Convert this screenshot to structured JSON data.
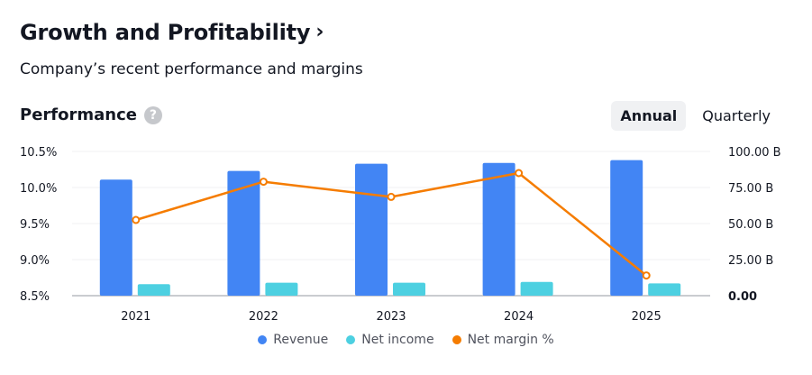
{
  "header": {
    "title": "Growth and Profitability",
    "title_chevron": "›",
    "subtitle": "Company’s recent performance and margins"
  },
  "performance": {
    "title": "Performance",
    "help_icon": "?",
    "toggle": {
      "annual": "Annual",
      "quarterly": "Quarterly",
      "active": "annual"
    }
  },
  "colors": {
    "revenue": "#4285f4",
    "net_income": "#4dd0e1",
    "net_margin": "#f57c00"
  },
  "chart_data": {
    "type": "bar",
    "categories": [
      "2021",
      "2022",
      "2023",
      "2024",
      "2025"
    ],
    "series": [
      {
        "name": "Revenue",
        "type": "bar",
        "axis": "right",
        "values": [
          80.5,
          86.5,
          91.5,
          92.0,
          94.0
        ]
      },
      {
        "name": "Net income",
        "type": "bar",
        "axis": "right",
        "values": [
          8.0,
          9.0,
          9.0,
          9.5,
          8.5
        ]
      },
      {
        "name": "Net margin %",
        "type": "line",
        "axis": "left",
        "values": [
          9.55,
          10.08,
          9.87,
          10.2,
          8.78
        ]
      }
    ],
    "y_left": {
      "ticks": [
        "10.5%",
        "10.0%",
        "9.5%",
        "9.0%",
        "8.5%"
      ],
      "range": [
        8.5,
        10.5
      ]
    },
    "y_right": {
      "ticks": [
        "100.00 B",
        "75.00 B",
        "50.00 B",
        "25.00 B",
        "0.00"
      ],
      "range": [
        0,
        100
      ]
    },
    "grid": true,
    "legend_position": "bottom-center"
  }
}
